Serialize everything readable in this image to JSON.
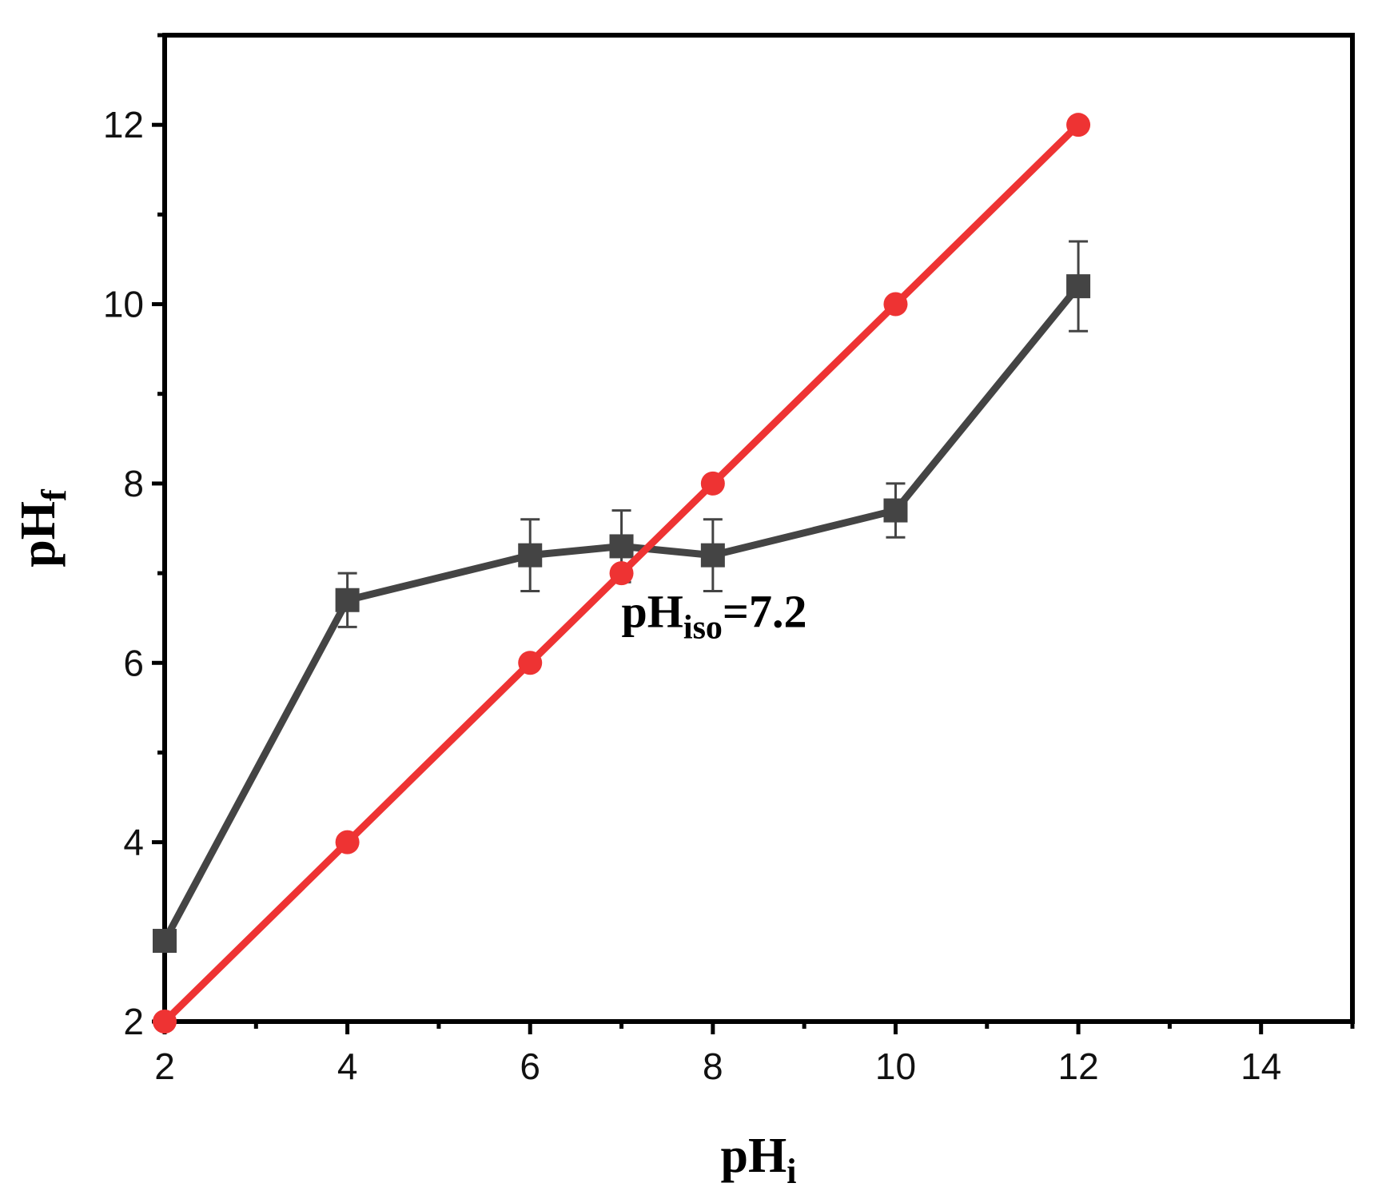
{
  "chart_data": {
    "type": "line",
    "xlabel": {
      "main": "pH",
      "sub": "i"
    },
    "ylabel": {
      "main": "pH",
      "sub": "f"
    },
    "xlim": [
      2,
      15
    ],
    "ylim": [
      2,
      13
    ],
    "x_ticks": [
      2,
      4,
      6,
      8,
      10,
      12,
      14
    ],
    "y_ticks": [
      2,
      4,
      6,
      8,
      10,
      12
    ],
    "x_minor_ticks": [
      3,
      5,
      7,
      9,
      11,
      13,
      15
    ],
    "y_minor_ticks": [
      3,
      5,
      7,
      9,
      11,
      13
    ],
    "grid": false,
    "annotation": {
      "main": "pH",
      "sub": "iso",
      "rest": "=7.2",
      "x": 7.0,
      "y": 6.4
    },
    "series": [
      {
        "marker": "square",
        "color": "#444444",
        "x": [
          2,
          4,
          6,
          7,
          8,
          10,
          12
        ],
        "y": [
          2.9,
          6.7,
          7.2,
          7.3,
          7.2,
          7.7,
          10.2
        ],
        "error": [
          0,
          0.3,
          0.4,
          0.4,
          0.4,
          0.3,
          0.5
        ]
      },
      {
        "marker": "circle",
        "color": "#ee3333",
        "x": [
          2,
          4,
          6,
          7,
          8,
          10,
          12
        ],
        "y": [
          2,
          4,
          6,
          7,
          8,
          10,
          12
        ]
      }
    ]
  }
}
